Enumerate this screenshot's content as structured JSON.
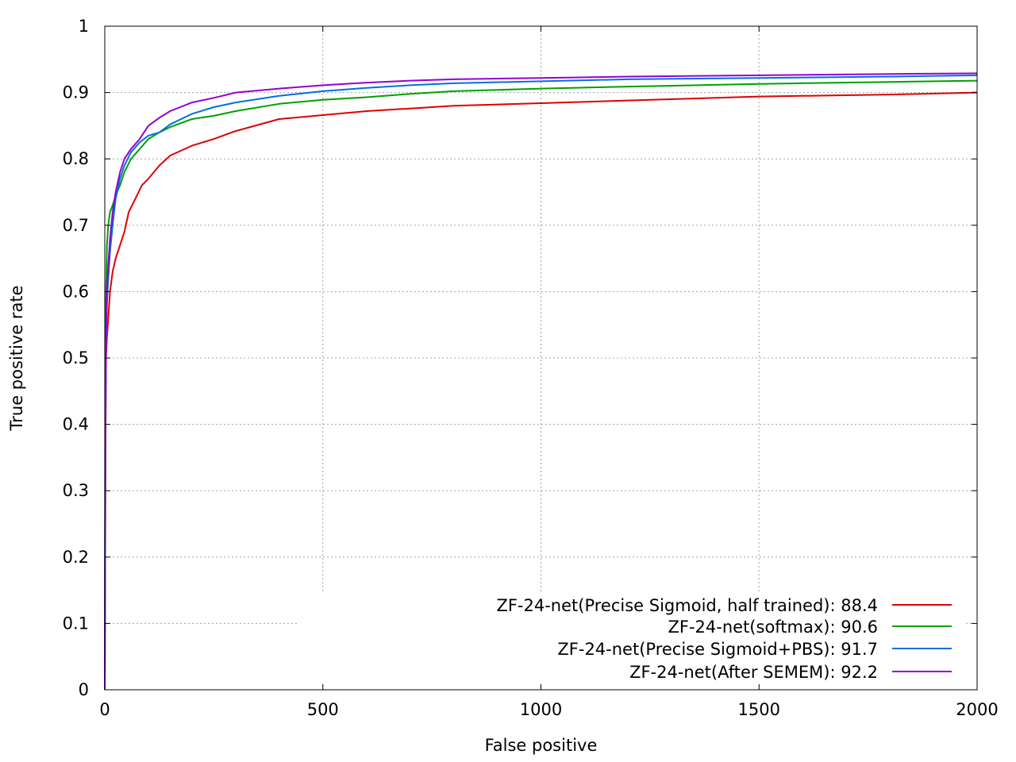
{
  "chart_data": {
    "type": "line",
    "xlabel": "False positive",
    "ylabel": "True positive rate",
    "xlim": [
      0,
      2000
    ],
    "ylim": [
      0,
      1
    ],
    "xticks": [
      0,
      500,
      1000,
      1500,
      2000
    ],
    "yticks": [
      0,
      0.1,
      0.2,
      0.3,
      0.4,
      0.5,
      0.6,
      0.7,
      0.8,
      0.9,
      1
    ],
    "xtick_labels": [
      "0",
      "500",
      "1000",
      "1500",
      "2000"
    ],
    "ytick_labels": [
      "0",
      "0.1",
      "0.2",
      "0.3",
      "0.4",
      "0.5",
      "0.6",
      "0.7",
      "0.8",
      "0.9",
      "1"
    ],
    "grid": true,
    "legend_position": "bottom-right",
    "series": [
      {
        "name": "ZF-24-net(Precise Sigmoid, half trained): 88.4",
        "color": "#e00000",
        "x": [
          0,
          1,
          2,
          3,
          5,
          8,
          12,
          18,
          25,
          35,
          45,
          55,
          70,
          85,
          100,
          125,
          150,
          200,
          250,
          300,
          400,
          500,
          600,
          700,
          800,
          1000,
          1200,
          1500,
          1800,
          2000
        ],
        "y": [
          0,
          0.2,
          0.4,
          0.5,
          0.53,
          0.56,
          0.6,
          0.63,
          0.65,
          0.67,
          0.69,
          0.72,
          0.74,
          0.76,
          0.77,
          0.79,
          0.805,
          0.82,
          0.83,
          0.842,
          0.86,
          0.866,
          0.872,
          0.876,
          0.88,
          0.884,
          0.888,
          0.894,
          0.897,
          0.9
        ]
      },
      {
        "name": "ZF-24-net(softmax): 90.6",
        "color": "#00a000",
        "x": [
          0,
          1,
          2,
          3,
          5,
          8,
          12,
          18,
          25,
          35,
          45,
          60,
          80,
          100,
          125,
          150,
          200,
          250,
          300,
          400,
          500,
          600,
          700,
          800,
          1000,
          1200,
          1500,
          1800,
          2000
        ],
        "y": [
          0,
          0.4,
          0.52,
          0.6,
          0.67,
          0.7,
          0.72,
          0.73,
          0.745,
          0.76,
          0.78,
          0.8,
          0.815,
          0.83,
          0.84,
          0.848,
          0.86,
          0.865,
          0.872,
          0.883,
          0.889,
          0.893,
          0.898,
          0.902,
          0.906,
          0.909,
          0.913,
          0.916,
          0.918
        ]
      },
      {
        "name": "ZF-24-net(Precise Sigmoid+PBS): 91.7",
        "color": "#0070e0",
        "x": [
          0,
          1,
          2,
          3,
          5,
          8,
          12,
          18,
          25,
          35,
          45,
          60,
          80,
          100,
          125,
          150,
          200,
          250,
          300,
          400,
          500,
          600,
          700,
          800,
          1000,
          1200,
          1500,
          1800,
          2000
        ],
        "y": [
          0,
          0.28,
          0.43,
          0.52,
          0.58,
          0.62,
          0.66,
          0.7,
          0.74,
          0.77,
          0.79,
          0.81,
          0.825,
          0.835,
          0.84,
          0.852,
          0.868,
          0.878,
          0.885,
          0.895,
          0.902,
          0.907,
          0.911,
          0.914,
          0.917,
          0.92,
          0.922,
          0.924,
          0.926
        ]
      },
      {
        "name": "ZF-24-net(After SEMEM): 92.2",
        "color": "#9400d3",
        "x": [
          0,
          1,
          2,
          3,
          5,
          8,
          12,
          18,
          25,
          35,
          45,
          60,
          80,
          100,
          125,
          150,
          200,
          250,
          300,
          400,
          500,
          600,
          700,
          800,
          1000,
          1200,
          1500,
          1800,
          2000
        ],
        "y": [
          0,
          0.3,
          0.45,
          0.54,
          0.6,
          0.64,
          0.68,
          0.72,
          0.75,
          0.78,
          0.8,
          0.815,
          0.83,
          0.85,
          0.862,
          0.872,
          0.885,
          0.892,
          0.9,
          0.906,
          0.911,
          0.915,
          0.918,
          0.92,
          0.922,
          0.924,
          0.926,
          0.928,
          0.929
        ]
      }
    ]
  }
}
